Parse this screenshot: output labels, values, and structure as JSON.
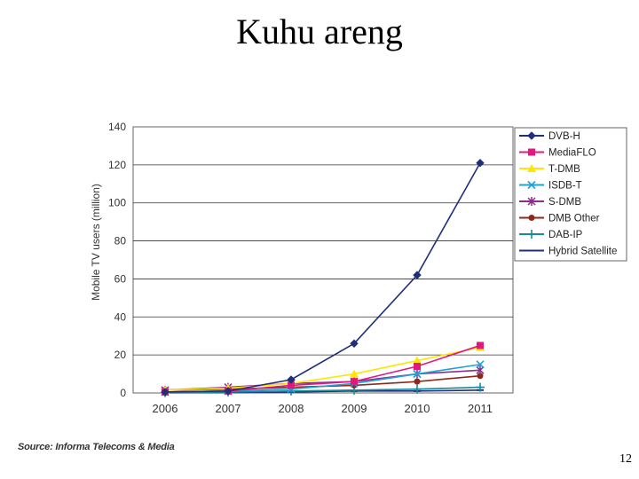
{
  "slide": {
    "title": "Kuhu areng",
    "source": "Source: Informa Telecoms & Media",
    "page_number": "12"
  },
  "chart_data": {
    "type": "line",
    "ylabel": "Mobile TV users (million)",
    "xlabel": "",
    "categories": [
      "2006",
      "2007",
      "2008",
      "2009",
      "2010",
      "2011"
    ],
    "ylim": [
      0,
      140
    ],
    "yticks": [
      0,
      20,
      40,
      60,
      80,
      100,
      120,
      140
    ],
    "grid": "horizontal",
    "legend_position": "right",
    "series": [
      {
        "name": "DVB-H",
        "color": "#1f2f7a",
        "marker": "diamond",
        "values": [
          0.5,
          1,
          7,
          26,
          62,
          121
        ]
      },
      {
        "name": "MediaFLO",
        "color": "#e0197d",
        "marker": "square",
        "values": [
          0.5,
          1,
          4,
          6,
          14,
          25
        ]
      },
      {
        "name": "T-DMB",
        "color": "#ffe600",
        "marker": "triangle",
        "values": [
          1.5,
          2.5,
          5,
          10,
          17,
          24
        ]
      },
      {
        "name": "ISDB-T",
        "color": "#1fa3d6",
        "marker": "x",
        "values": [
          0.5,
          1,
          2,
          5,
          10,
          15
        ]
      },
      {
        "name": "S-DMB",
        "color": "#8e2d8f",
        "marker": "star",
        "values": [
          1.5,
          3,
          5,
          6,
          10,
          12
        ]
      },
      {
        "name": "DMB Other",
        "color": "#8b2a1a",
        "marker": "circle",
        "values": [
          1.5,
          2,
          3,
          4,
          6,
          9
        ]
      },
      {
        "name": "DAB-IP",
        "color": "#16899a",
        "marker": "plus",
        "values": [
          0.2,
          0.5,
          1,
          1.5,
          2,
          3
        ]
      },
      {
        "name": "Hybrid Satellite",
        "color": "#1f2f7a",
        "marker": "dash",
        "values": [
          0.1,
          0.2,
          0.5,
          1,
          1,
          1.5
        ]
      }
    ]
  }
}
